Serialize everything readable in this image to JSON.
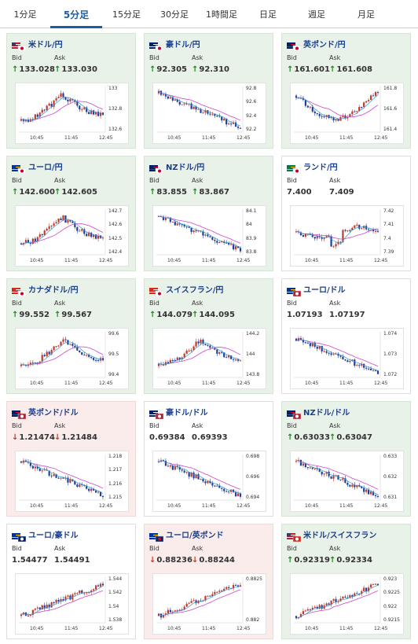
{
  "tabs": [
    "1分足",
    "5分足",
    "15分足",
    "30分足",
    "1時間足",
    "日足",
    "週足",
    "月足"
  ],
  "active_tab": "5分足",
  "labels": {
    "bid": "Bid",
    "ask": "Ask"
  },
  "colors": {
    "up": "#1a8a1a",
    "down": "#c0392b",
    "card_up_bg": "#e9f2e9",
    "card_down_bg": "#fbecec",
    "title": "#1a3f8c",
    "ma_pink": "#cc44cc",
    "ma_cyan": "#3399cc"
  },
  "cards": [
    {
      "name": "米ドル/円",
      "bid": "133.028",
      "ask": "133.030",
      "dir": "up",
      "flag": "us-jp-flag",
      "yticks": [
        "133",
        "132.8",
        "132.6"
      ],
      "xticks": [
        "10:45",
        "11:45",
        "12:45"
      ],
      "shape": "vdip"
    },
    {
      "name": "豪ドル/円",
      "bid": "92.305",
      "ask": "92.310",
      "dir": "up",
      "flag": "au-jp-flag",
      "yticks": [
        "92.8",
        "92.6",
        "92.4",
        "92.2"
      ],
      "xticks": [
        "10:45",
        "11:45",
        "12:45"
      ],
      "shape": "down"
    },
    {
      "name": "英ポンド/円",
      "bid": "161.601",
      "ask": "161.608",
      "dir": "up",
      "flag": "gb-jp-flag",
      "yticks": [
        "161.8",
        "161.6",
        "161.4"
      ],
      "xticks": [
        "10:45",
        "11:45",
        "12:45"
      ],
      "shape": "udip"
    },
    {
      "name": "ユーロ/円",
      "bid": "142.600",
      "ask": "142.605",
      "dir": "up",
      "flag": "eu-jp-flag",
      "yticks": [
        "142.7",
        "142.6",
        "142.5",
        "142.4"
      ],
      "xticks": [
        "10:45",
        "11:45",
        "12:45"
      ],
      "shape": "vdip"
    },
    {
      "name": "NZドル/円",
      "bid": "83.855",
      "ask": "83.867",
      "dir": "up",
      "flag": "nz-jp-flag",
      "yticks": [
        "84.1",
        "84",
        "83.9",
        "83.8"
      ],
      "xticks": [
        "10:45",
        "11:45",
        "12:45"
      ],
      "shape": "down"
    },
    {
      "name": "ランド/円",
      "bid": "7.400",
      "ask": "7.409",
      "dir": "none",
      "flag": "za-jp-flag",
      "yticks": [
        "7.42",
        "7.41",
        "7.4",
        "7.39"
      ],
      "xticks": [
        "10:45",
        "11:45",
        "12:45"
      ],
      "shape": "flat"
    },
    {
      "name": "カナダドル/円",
      "bid": "99.552",
      "ask": "99.567",
      "dir": "up",
      "flag": "ca-jp-flag",
      "yticks": [
        "99.6",
        "99.5",
        "99.4"
      ],
      "xticks": [
        "10:45",
        "11:45",
        "12:45"
      ],
      "shape": "vdip"
    },
    {
      "name": "スイスフラン/円",
      "bid": "144.079",
      "ask": "144.095",
      "dir": "up",
      "flag": "ch-jp-flag",
      "yticks": [
        "144.2",
        "144",
        "143.8"
      ],
      "xticks": [
        "10:45",
        "11:45",
        "12:45"
      ],
      "shape": "vdip"
    },
    {
      "name": "ユーロ/ドル",
      "bid": "1.07193",
      "ask": "1.07197",
      "dir": "none",
      "flag": "eu-us-flag",
      "yticks": [
        "1.074",
        "1.073",
        "1.072"
      ],
      "xticks": [
        "10:45",
        "11:45",
        "12:45"
      ],
      "shape": "down"
    },
    {
      "name": "英ポンド/ドル",
      "bid": "1.21474",
      "ask": "1.21484",
      "dir": "down",
      "flag": "gb-us-flag",
      "yticks": [
        "1.218",
        "1.217",
        "1.216",
        "1.215"
      ],
      "xticks": [
        "10:45",
        "11:45",
        "12:45"
      ],
      "shape": "down"
    },
    {
      "name": "豪ドル/ドル",
      "bid": "0.69384",
      "ask": "0.69393",
      "dir": "none",
      "flag": "au-us-flag",
      "yticks": [
        "0.698",
        "0.696",
        "0.694"
      ],
      "xticks": [
        "10:45",
        "11:45",
        "12:45"
      ],
      "shape": "down"
    },
    {
      "name": "NZドル/ドル",
      "bid": "0.63033",
      "ask": "0.63047",
      "dir": "up",
      "flag": "nz-us-flag",
      "yticks": [
        "0.633",
        "0.632",
        "0.631"
      ],
      "xticks": [
        "10:45",
        "11:45",
        "12:45"
      ],
      "shape": "down"
    },
    {
      "name": "ユーロ/豪ドル",
      "bid": "1.54477",
      "ask": "1.54491",
      "dir": "none",
      "flag": "eu-au-flag",
      "yticks": [
        "1.544",
        "1.542",
        "1.54",
        "1.538"
      ],
      "xticks": [
        "10:45",
        "11:45",
        "12:45"
      ],
      "shape": "rise"
    },
    {
      "name": "ユーロ/英ポンド",
      "bid": "0.88236",
      "ask": "0.88244",
      "dir": "down",
      "flag": "eu-gb-flag",
      "yticks": [
        "0.8825",
        "0.882"
      ],
      "xticks": [
        "10:45",
        "11:45",
        "12:45"
      ],
      "shape": "rise"
    },
    {
      "name": "米ドル/スイスフラン",
      "bid": "0.92319",
      "ask": "0.92334",
      "dir": "up",
      "flag": "us-ch-flag",
      "yticks": [
        "0.923",
        "0.9225",
        "0.922",
        "0.9215"
      ],
      "xticks": [
        "10:45",
        "11:45",
        "12:45"
      ],
      "shape": "rise"
    }
  ]
}
